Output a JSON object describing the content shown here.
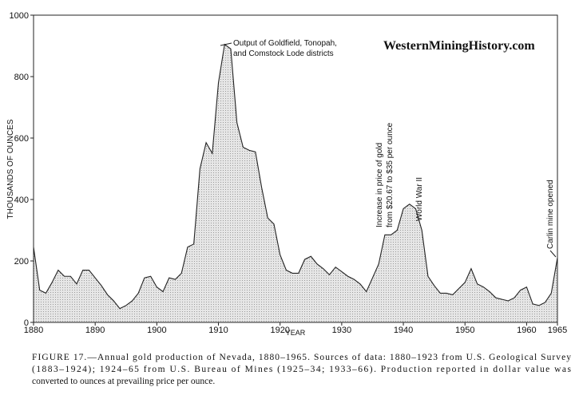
{
  "chart_data": {
    "type": "area",
    "xlabel": "YEAR",
    "ylabel": "THOUSANDS OF OUNCES",
    "watermark": "WesternMiningHistory.com",
    "x": [
      1880,
      1881,
      1882,
      1883,
      1884,
      1885,
      1886,
      1887,
      1888,
      1889,
      1890,
      1891,
      1892,
      1893,
      1894,
      1895,
      1896,
      1897,
      1898,
      1899,
      1900,
      1901,
      1902,
      1903,
      1904,
      1905,
      1906,
      1907,
      1908,
      1909,
      1910,
      1911,
      1912,
      1913,
      1914,
      1915,
      1916,
      1917,
      1918,
      1919,
      1920,
      1921,
      1922,
      1923,
      1924,
      1925,
      1926,
      1927,
      1928,
      1929,
      1930,
      1931,
      1932,
      1933,
      1934,
      1935,
      1936,
      1937,
      1938,
      1939,
      1940,
      1941,
      1942,
      1943,
      1944,
      1945,
      1946,
      1947,
      1948,
      1949,
      1950,
      1951,
      1952,
      1953,
      1954,
      1955,
      1956,
      1957,
      1958,
      1959,
      1960,
      1961,
      1962,
      1963,
      1964,
      1965
    ],
    "values": [
      245,
      105,
      95,
      130,
      170,
      150,
      150,
      125,
      170,
      170,
      145,
      120,
      90,
      70,
      45,
      55,
      70,
      95,
      145,
      150,
      115,
      100,
      145,
      140,
      160,
      245,
      255,
      500,
      585,
      550,
      780,
      905,
      890,
      650,
      570,
      560,
      555,
      440,
      340,
      320,
      220,
      170,
      160,
      160,
      205,
      215,
      190,
      175,
      155,
      180,
      165,
      150,
      140,
      125,
      100,
      145,
      190,
      285,
      285,
      300,
      370,
      385,
      370,
      300,
      150,
      120,
      95,
      95,
      90,
      110,
      130,
      175,
      125,
      115,
      100,
      80,
      75,
      70,
      80,
      105,
      115,
      60,
      55,
      65,
      95,
      210
    ],
    "color": "#dcdcdc",
    "xlim": [
      1880,
      1965
    ],
    "ylim": [
      0,
      1000
    ],
    "xticks": [
      1880,
      1890,
      1900,
      1910,
      1920,
      1930,
      1940,
      1950,
      1960,
      1965
    ],
    "yticks": [
      0,
      200,
      400,
      600,
      800,
      1000
    ],
    "annotations": [
      {
        "text": [
          "Output of Goldfield, Tonopah,",
          "and Comstock Lode districts"
        ]
      },
      {
        "text": [
          "Increase in price of gold",
          "from $20.67 to $35 per ounce"
        ]
      },
      {
        "text": [
          "World War II"
        ]
      },
      {
        "text": [
          "Carlin mine opened"
        ]
      }
    ],
    "caption": [
      "FIGURE 17.—Annual gold production of Nevada, 1880–1965. Sources of data: 1880–1923 from U.S. Geological Survey",
      "(1883–1924); 1924–65 from U.S. Bureau of Mines (1925–34; 1933–66). Production reported in dollar value was",
      "converted to ounces at prevailing price per ounce."
    ]
  }
}
